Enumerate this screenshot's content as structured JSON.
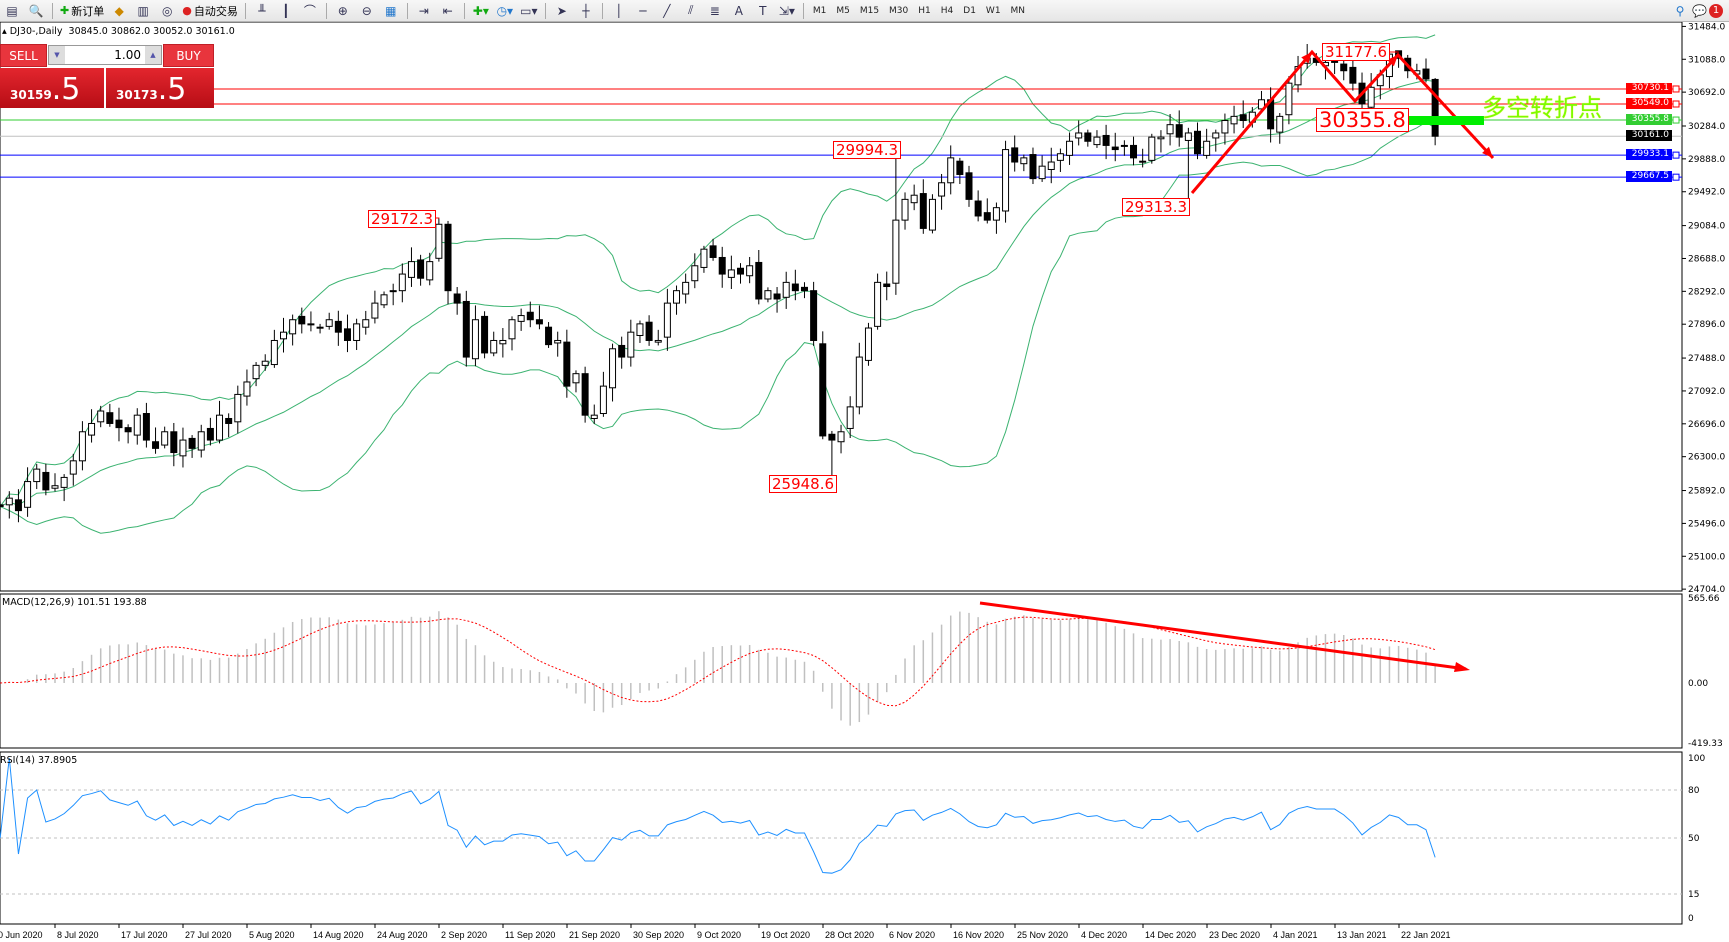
{
  "window": {
    "symbol_title": "DJ30-,Daily",
    "ohlc": "30845.0 30862.0 30052.0 30161.0"
  },
  "toolbar": {
    "new_order": "新订单",
    "auto_trading": "自动交易",
    "timeframes": [
      "M1",
      "M5",
      "M15",
      "M30",
      "H1",
      "H4",
      "D1",
      "W1",
      "MN"
    ],
    "notification_count": "1"
  },
  "trade_panel": {
    "sell_label": "SELL",
    "buy_label": "BUY",
    "lot_size": "1.00",
    "sell_price_main": "30159",
    "sell_price_frac": ".5",
    "buy_price_main": "30173",
    "buy_price_frac": ".5"
  },
  "chart_data": {
    "type": "candlestick",
    "symbol": "DJ30-",
    "timeframe": "Daily",
    "last_bar": {
      "open": 30845.0,
      "high": 30862.0,
      "low": 30052.0,
      "close": 30161.0
    },
    "closes": [
      25700,
      25800,
      25650,
      26000,
      26150,
      25900,
      25950,
      26050,
      26250,
      26600,
      26700,
      26850,
      26700,
      26650,
      26600,
      26800,
      26500,
      26400,
      26600,
      26350,
      26500,
      26400,
      26600,
      26500,
      26800,
      26700,
      27050,
      27200,
      27400,
      27450,
      27700,
      27800,
      27950,
      27900,
      27900,
      27850,
      27950,
      27800,
      27700,
      27900,
      27950,
      28150,
      28250,
      28300,
      28500,
      28650,
      28450,
      28650,
      29100,
      28300,
      28150,
      27500,
      27950,
      27550,
      27700,
      27700,
      27950,
      28000,
      27950,
      27900,
      27650,
      27700,
      27150,
      27300,
      26800,
      26800,
      27150,
      27600,
      27500,
      27800,
      27900,
      27700,
      27700,
      28150,
      28300,
      28400,
      28600,
      28800,
      28700,
      28500,
      28550,
      28500,
      28600,
      28200,
      28300,
      28200,
      28400,
      28300,
      28300,
      27700,
      26550,
      26500,
      26600,
      26900,
      27500,
      27850,
      28400,
      28350,
      29150,
      29400,
      29450,
      29050,
      29400,
      29600,
      29900,
      29700,
      29400,
      29200,
      29150,
      29300,
      30000,
      29850,
      29900,
      29650,
      29800,
      29850,
      29950,
      30100,
      30200,
      30100,
      30150,
      30050,
      30000,
      30050,
      29900,
      29850,
      30150,
      30150,
      30300,
      30150,
      30200,
      29950,
      30100,
      30200,
      30350,
      30400,
      30350,
      30450,
      30600,
      30250,
      30400,
      30800,
      31000,
      31100,
      31050,
      31050,
      31050,
      30950,
      30800,
      30550,
      30750,
      30900,
      31150,
      31100,
      30950,
      30950,
      30850,
      30161
    ],
    "price_axis": {
      "min": 24704.0,
      "max": 31484.0,
      "ticks": [
        "31484.0",
        "31088.0",
        "30692.0",
        "30284.0",
        "29888.0",
        "29492.0",
        "29084.0",
        "28688.0",
        "28292.0",
        "27896.0",
        "27488.0",
        "27092.0",
        "26696.0",
        "26300.0",
        "25892.0",
        "25496.0",
        "25100.0",
        "24704.0"
      ]
    },
    "date_labels": [
      "30 Jun 2020",
      "8 Jul 2020",
      "17 Jul 2020",
      "27 Jul 2020",
      "5 Aug 2020",
      "14 Aug 2020",
      "24 Aug 2020",
      "2 Sep 2020",
      "11 Sep 2020",
      "21 Sep 2020",
      "30 Sep 2020",
      "9 Oct 2020",
      "19 Oct 2020",
      "28 Oct 2020",
      "6 Nov 2020",
      "16 Nov 2020",
      "25 Nov 2020",
      "4 Dec 2020",
      "14 Dec 2020",
      "23 Dec 2020",
      "4 Jan 2021",
      "13 Jan 2021",
      "22 Jan 2021"
    ],
    "indicators": {
      "bollinger": {
        "period": 20,
        "deviation": 2,
        "color": "#3cb371"
      }
    },
    "horizontal_lines": [
      {
        "label": "30730.1",
        "price": 30730.1,
        "color": "#ff0000"
      },
      {
        "label": "30549.0",
        "price": 30549.0,
        "color": "#ff0000"
      },
      {
        "label": "30355.8",
        "price": 30355.8,
        "color": "#32cd32"
      },
      {
        "label": "30161.0",
        "price": 30161.0,
        "color": "#000000",
        "line_color": "#c0c0c0"
      },
      {
        "label": "29933.1",
        "price": 29933.1,
        "color": "#0000ff"
      },
      {
        "label": "29667.5",
        "price": 29667.5,
        "color": "#0000ff"
      }
    ],
    "price_annotations": [
      "29172.3",
      "29994.3",
      "25948.6",
      "29313.3",
      "31177.6",
      "30355.8"
    ],
    "text_annotation": "多空转折点",
    "macd": {
      "legend": "MACD(12,26,9) 101.51 193.88",
      "axis": [
        "565.66",
        "0.00",
        "-419.33"
      ],
      "range": [
        -419.33,
        565.66
      ],
      "histogram_color": "#c0c0c0",
      "signal_color": "#ff0000"
    },
    "rsi": {
      "legend": "RSI(14) 37.8905",
      "axis": [
        "100",
        "80",
        "50",
        "15",
        "0"
      ],
      "levels": [
        80,
        50,
        15
      ],
      "color": "#1e90ff"
    }
  }
}
